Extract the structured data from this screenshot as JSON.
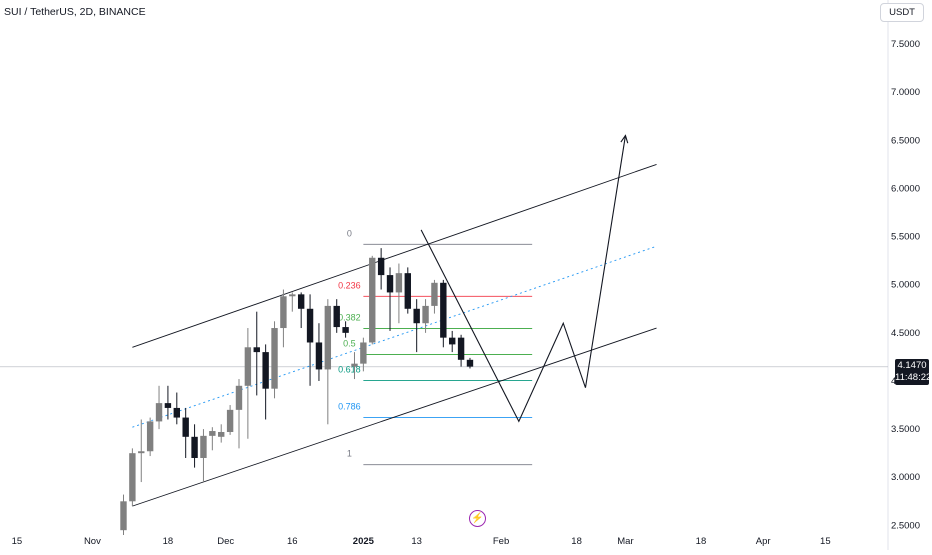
{
  "header": {
    "symbol_title": "SUI / TetherUS, 2D, BINANCE",
    "currency_button": "USDT"
  },
  "price_badge": {
    "price": "4.1470",
    "countdown": "11:48:22"
  },
  "colors": {
    "bull_candle": "#808080",
    "bear_candle": "#131722",
    "fib_red": "#f23645",
    "fib_green": "#4caf50",
    "fib_teal": "#089981",
    "fib_blue": "#2196f3",
    "fib_grey": "#787b86",
    "event_purple": "#9c27b0"
  },
  "icons": {
    "event": "lightning-icon"
  },
  "chart_data": {
    "type": "candlestick",
    "y_axis": {
      "min": 2.4,
      "max": 7.75,
      "ticks": [
        "7.5000",
        "7.0000",
        "6.5000",
        "6.0000",
        "5.5000",
        "5.0000",
        "4.5000",
        "4.0000",
        "3.5000",
        "3.0000",
        "2.5000"
      ],
      "tick_values": [
        7.5,
        7.0,
        6.5,
        6.0,
        5.5,
        5.0,
        4.5,
        4.0,
        3.5,
        3.0,
        2.5
      ]
    },
    "x_axis": {
      "start": "2024-10-13",
      "end": "2025-04-21",
      "ticks": [
        {
          "label": "15",
          "date": "2024-10-15",
          "bold": false
        },
        {
          "label": "Nov",
          "date": "2024-11-01",
          "bold": false
        },
        {
          "label": "18",
          "date": "2024-11-18",
          "bold": false
        },
        {
          "label": "Dec",
          "date": "2024-12-01",
          "bold": false
        },
        {
          "label": "16",
          "date": "2024-12-16",
          "bold": false
        },
        {
          "label": "2025",
          "date": "2025-01-01",
          "bold": true
        },
        {
          "label": "13",
          "date": "2025-01-13",
          "bold": false
        },
        {
          "label": "Feb",
          "date": "2025-02-01",
          "bold": false
        },
        {
          "label": "18",
          "date": "2025-02-18",
          "bold": false
        },
        {
          "label": "Mar",
          "date": "2025-03-01",
          "bold": false
        },
        {
          "label": "18",
          "date": "2025-03-18",
          "bold": false
        },
        {
          "label": "Apr",
          "date": "2025-04-01",
          "bold": false
        },
        {
          "label": "15",
          "date": "2025-04-15",
          "bold": false
        }
      ]
    },
    "candles": [
      {
        "date": "2024-11-08",
        "open": 2.45,
        "high": 2.82,
        "low": 2.4,
        "close": 2.75
      },
      {
        "date": "2024-11-10",
        "open": 2.75,
        "high": 3.3,
        "low": 2.7,
        "close": 3.25
      },
      {
        "date": "2024-11-12",
        "open": 3.25,
        "high": 3.6,
        "low": 2.95,
        "close": 3.27
      },
      {
        "date": "2024-11-14",
        "open": 3.27,
        "high": 3.62,
        "low": 3.22,
        "close": 3.58
      },
      {
        "date": "2024-11-16",
        "open": 3.58,
        "high": 3.95,
        "low": 3.5,
        "close": 3.77
      },
      {
        "date": "2024-11-18",
        "open": 3.77,
        "high": 3.95,
        "low": 3.6,
        "close": 3.72
      },
      {
        "date": "2024-11-20",
        "open": 3.72,
        "high": 3.88,
        "low": 3.55,
        "close": 3.62
      },
      {
        "date": "2024-11-22",
        "open": 3.62,
        "high": 3.72,
        "low": 3.2,
        "close": 3.42
      },
      {
        "date": "2024-11-24",
        "open": 3.42,
        "high": 3.55,
        "low": 3.1,
        "close": 3.2
      },
      {
        "date": "2024-11-26",
        "open": 3.2,
        "high": 3.5,
        "low": 2.95,
        "close": 3.43
      },
      {
        "date": "2024-11-28",
        "open": 3.43,
        "high": 3.52,
        "low": 3.28,
        "close": 3.48
      },
      {
        "date": "2024-11-30",
        "open": 3.42,
        "high": 3.55,
        "low": 3.36,
        "close": 3.47
      },
      {
        "date": "2024-12-02",
        "open": 3.47,
        "high": 3.75,
        "low": 3.44,
        "close": 3.7
      },
      {
        "date": "2024-12-04",
        "open": 3.7,
        "high": 4.02,
        "low": 3.3,
        "close": 3.95
      },
      {
        "date": "2024-12-06",
        "open": 3.95,
        "high": 4.55,
        "low": 3.4,
        "close": 4.35
      },
      {
        "date": "2024-12-08",
        "open": 4.35,
        "high": 4.72,
        "low": 3.85,
        "close": 4.3
      },
      {
        "date": "2024-12-10",
        "open": 4.3,
        "high": 4.38,
        "low": 3.6,
        "close": 3.92
      },
      {
        "date": "2024-12-12",
        "open": 3.92,
        "high": 4.62,
        "low": 3.82,
        "close": 4.55
      },
      {
        "date": "2024-12-14",
        "open": 4.55,
        "high": 4.95,
        "low": 4.35,
        "close": 4.88
      },
      {
        "date": "2024-12-16",
        "open": 4.88,
        "high": 4.92,
        "low": 4.72,
        "close": 4.9
      },
      {
        "date": "2024-12-18",
        "open": 4.9,
        "high": 4.92,
        "low": 4.55,
        "close": 4.75
      },
      {
        "date": "2024-12-20",
        "open": 4.75,
        "high": 4.9,
        "low": 3.95,
        "close": 4.4
      },
      {
        "date": "2024-12-22",
        "open": 4.4,
        "high": 4.6,
        "low": 4.0,
        "close": 4.12
      },
      {
        "date": "2024-12-24",
        "open": 4.12,
        "high": 4.85,
        "low": 3.55,
        "close": 4.78
      },
      {
        "date": "2024-12-26",
        "open": 4.78,
        "high": 4.85,
        "low": 4.5,
        "close": 4.56
      },
      {
        "date": "2024-12-28",
        "open": 4.56,
        "high": 4.62,
        "low": 4.45,
        "close": 4.5
      },
      {
        "date": "2024-12-30",
        "open": 4.15,
        "high": 4.3,
        "low": 4.02,
        "close": 4.18
      },
      {
        "date": "2025-01-01",
        "open": 4.18,
        "high": 4.45,
        "low": 4.1,
        "close": 4.4
      },
      {
        "date": "2025-01-03",
        "open": 4.4,
        "high": 5.3,
        "low": 4.38,
        "close": 5.28
      },
      {
        "date": "2025-01-05",
        "open": 5.28,
        "high": 5.38,
        "low": 4.95,
        "close": 5.1
      },
      {
        "date": "2025-01-07",
        "open": 5.1,
        "high": 5.18,
        "low": 4.52,
        "close": 4.92
      },
      {
        "date": "2025-01-09",
        "open": 4.92,
        "high": 5.22,
        "low": 4.6,
        "close": 5.12
      },
      {
        "date": "2025-01-11",
        "open": 5.12,
        "high": 5.18,
        "low": 4.7,
        "close": 4.75
      },
      {
        "date": "2025-01-13",
        "open": 4.75,
        "high": 4.85,
        "low": 4.3,
        "close": 4.6
      },
      {
        "date": "2025-01-15",
        "open": 4.6,
        "high": 4.85,
        "low": 4.5,
        "close": 4.78
      },
      {
        "date": "2025-01-17",
        "open": 4.78,
        "high": 5.05,
        "low": 4.7,
        "close": 5.02
      },
      {
        "date": "2025-01-19",
        "open": 5.02,
        "high": 5.05,
        "low": 4.35,
        "close": 4.45
      },
      {
        "date": "2025-01-21",
        "open": 4.45,
        "high": 4.52,
        "low": 4.3,
        "close": 4.38
      },
      {
        "date": "2025-01-23",
        "open": 4.45,
        "high": 4.48,
        "low": 4.15,
        "close": 4.22
      },
      {
        "date": "2025-01-25",
        "open": 4.22,
        "high": 4.24,
        "low": 4.13,
        "close": 4.15
      }
    ],
    "fibonacci": {
      "top": 5.42,
      "bottom": 3.13,
      "start": "2025-01-01",
      "end": "2025-02-08",
      "levels": [
        {
          "ratio": 0,
          "label": "0",
          "color": "#787b86"
        },
        {
          "ratio": 0.236,
          "label": "0.236",
          "color": "#f23645"
        },
        {
          "ratio": 0.382,
          "label": "0.382",
          "color": "#4caf50"
        },
        {
          "ratio": 0.5,
          "label": "0.5",
          "color": "#4caf50"
        },
        {
          "ratio": 0.618,
          "label": "0.618",
          "color": "#089981"
        },
        {
          "ratio": 0.786,
          "label": "0.786",
          "color": "#2196f3"
        },
        {
          "ratio": 1,
          "label": "1",
          "color": "#787b86"
        }
      ]
    },
    "channel": {
      "upper": {
        "from": {
          "date": "2024-11-10",
          "price": 4.35
        },
        "to": {
          "date": "2025-03-08",
          "price": 6.25
        }
      },
      "lower": {
        "from": {
          "date": "2024-11-10",
          "price": 2.7
        },
        "to": {
          "date": "2025-03-08",
          "price": 4.55
        }
      },
      "mid": {
        "from": {
          "date": "2024-11-10",
          "price": 3.52
        },
        "to": {
          "date": "2025-03-08",
          "price": 5.4
        }
      }
    },
    "projection_path": [
      {
        "date": "2025-01-14",
        "price": 5.57
      },
      {
        "date": "2025-02-05",
        "price": 3.58
      },
      {
        "date": "2025-02-15",
        "price": 4.6
      },
      {
        "date": "2025-02-20",
        "price": 3.93
      },
      {
        "date": "2025-03-01",
        "price": 6.55
      }
    ],
    "last_price": 4.147
  }
}
